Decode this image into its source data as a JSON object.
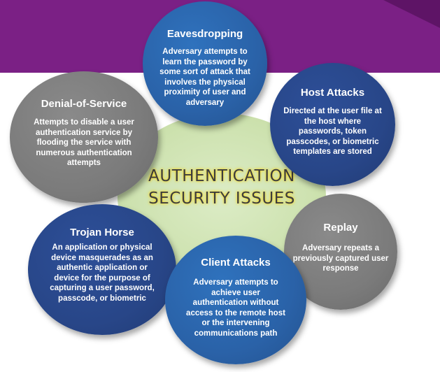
{
  "center": {
    "line1": "AUTHENTICATION",
    "line2": "SECURITY ISSUES"
  },
  "issues": [
    {
      "title": "Eavesdropping",
      "description": "Adversary attempts to learn the password by some sort of attack that involves the physical proximity of user and adversary"
    },
    {
      "title": "Denial-of-Service",
      "description": "Attempts to disable a user authentication service by flooding the service with numerous authentication attempts"
    },
    {
      "title": "Host Attacks",
      "description": "Directed at the user file at the host where passwords, token passcodes, or biometric templates are stored"
    },
    {
      "title": "Trojan Horse",
      "description": "An application or physical device masquerades as an authentic application or device for the purpose of capturing a user password, passcode, or biometric"
    },
    {
      "title": "Replay",
      "description": "Adversary repeats a previously captured user response"
    },
    {
      "title": "Client Attacks",
      "description": "Adversary attempts to achieve user authentication without access to the remote host or the intervening communications path"
    }
  ],
  "colors": {
    "banner": "#7b2085",
    "blue": "#2a62a8",
    "navy": "#284688",
    "gray": "#7b7b7b",
    "center": "#cfe3b2"
  }
}
